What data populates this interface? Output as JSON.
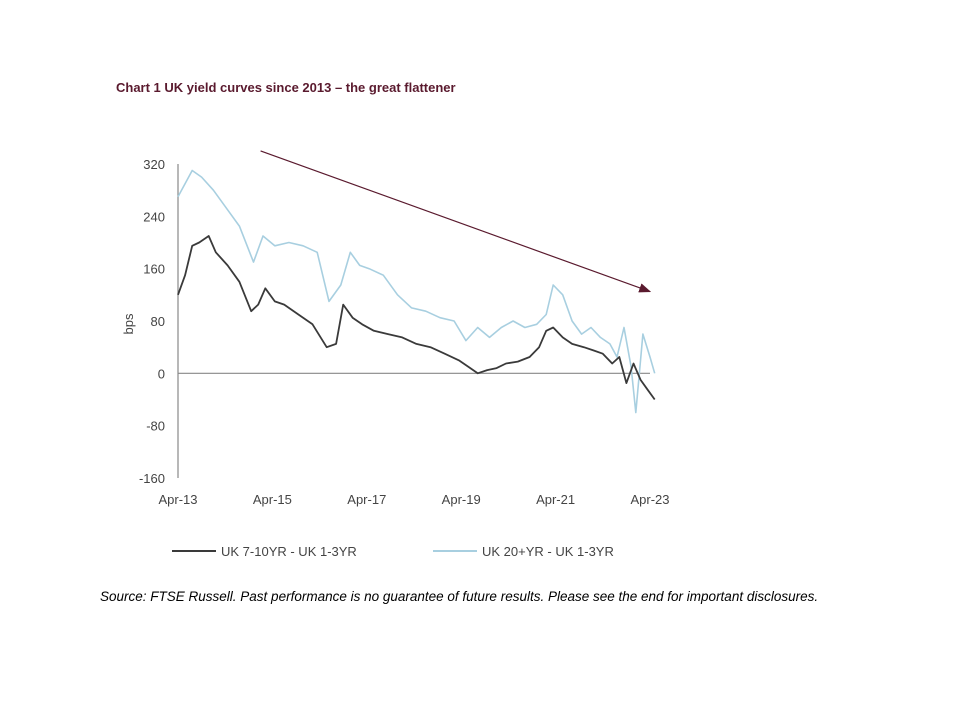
{
  "chart_data": {
    "type": "line",
    "title": "Chart 1 UK yield curves since 2013 – the great flattener",
    "ylabel": "bps",
    "xlabel": "",
    "ylim": [
      -160,
      320
    ],
    "yticks": [
      "320",
      "240",
      "160",
      "80",
      "0",
      "-80",
      "-160"
    ],
    "ytick_values": [
      320,
      240,
      160,
      80,
      0,
      -80,
      -160
    ],
    "xlim": [
      2013.25,
      2023.5
    ],
    "xticks": [
      "Apr-13",
      "Apr-15",
      "Apr-17",
      "Apr-19",
      "Apr-21",
      "Apr-23"
    ],
    "xtick_values": [
      2013.25,
      2015.25,
      2017.25,
      2019.25,
      2021.25,
      2023.25
    ],
    "legend_position": "bottom",
    "series": [
      {
        "name": "UK 7-10YR - UK 1-3YR",
        "color": "#3a3a3a",
        "x": [
          2013.25,
          2013.4,
          2013.55,
          2013.7,
          2013.9,
          2014.05,
          2014.3,
          2014.55,
          2014.8,
          2014.95,
          2015.1,
          2015.3,
          2015.5,
          2015.8,
          2016.1,
          2016.4,
          2016.6,
          2016.75,
          2016.95,
          2017.15,
          2017.4,
          2017.7,
          2018.0,
          2018.3,
          2018.6,
          2018.9,
          2019.2,
          2019.4,
          2019.6,
          2019.8,
          2020.0,
          2020.2,
          2020.45,
          2020.7,
          2020.9,
          2021.05,
          2021.2,
          2021.4,
          2021.6,
          2021.85,
          2022.05,
          2022.25,
          2022.45,
          2022.6,
          2022.75,
          2022.9,
          2023.05,
          2023.2,
          2023.35
        ],
        "y": [
          120,
          150,
          195,
          200,
          210,
          185,
          165,
          140,
          95,
          105,
          130,
          110,
          105,
          90,
          75,
          40,
          45,
          105,
          85,
          75,
          65,
          60,
          55,
          45,
          40,
          30,
          20,
          10,
          0,
          5,
          8,
          15,
          18,
          25,
          40,
          65,
          70,
          55,
          45,
          40,
          35,
          30,
          15,
          25,
          -15,
          15,
          -10,
          -25,
          -40
        ]
      },
      {
        "name": "UK 20+YR - UK 1-3YR",
        "color": "#a8cfe0",
        "x": [
          2013.25,
          2013.4,
          2013.55,
          2013.75,
          2014.0,
          2014.3,
          2014.55,
          2014.85,
          2015.05,
          2015.3,
          2015.6,
          2015.9,
          2016.2,
          2016.45,
          2016.7,
          2016.9,
          2017.1,
          2017.3,
          2017.6,
          2017.9,
          2018.2,
          2018.5,
          2018.8,
          2019.1,
          2019.35,
          2019.6,
          2019.85,
          2020.1,
          2020.35,
          2020.6,
          2020.85,
          2021.05,
          2021.2,
          2021.4,
          2021.6,
          2021.8,
          2022.0,
          2022.2,
          2022.4,
          2022.55,
          2022.7,
          2022.85,
          2022.95,
          2023.1,
          2023.25,
          2023.35
        ],
        "y": [
          270,
          290,
          310,
          300,
          280,
          250,
          225,
          170,
          210,
          195,
          200,
          195,
          185,
          110,
          135,
          185,
          165,
          160,
          150,
          120,
          100,
          95,
          85,
          80,
          50,
          70,
          55,
          70,
          80,
          70,
          75,
          90,
          135,
          120,
          80,
          60,
          70,
          55,
          45,
          25,
          70,
          10,
          -60,
          60,
          25,
          0
        ]
      }
    ],
    "annotations": [
      {
        "type": "arrow",
        "from": [
          2015.0,
          340
        ],
        "to": [
          2023.25,
          125
        ],
        "color": "#5a1a2e"
      }
    ]
  },
  "source_note": "Source: FTSE Russell. Past performance is no guarantee of future results. Please see the end for important disclosures."
}
